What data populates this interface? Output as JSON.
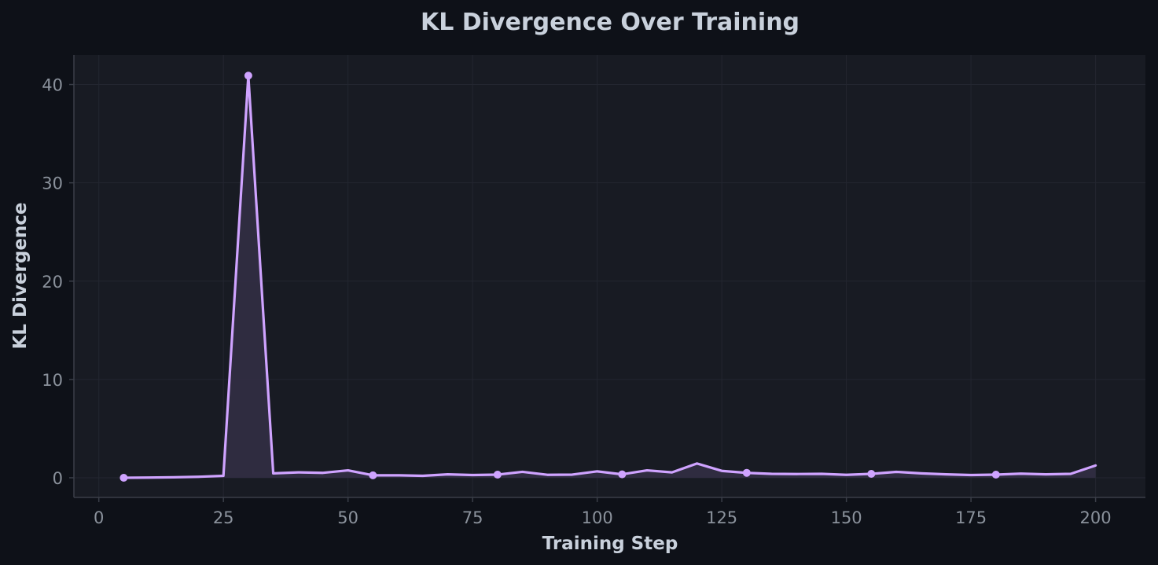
{
  "chart_data": {
    "type": "line",
    "title": "KL Divergence Over Training",
    "xlabel": "Training Step",
    "ylabel": "KL Divergence",
    "xlim": [
      -5,
      210
    ],
    "ylim": [
      -2,
      43
    ],
    "xticks": [
      0,
      25,
      50,
      75,
      100,
      125,
      150,
      175,
      200
    ],
    "yticks": [
      0,
      10,
      20,
      30,
      40
    ],
    "grid": true,
    "legend": "none",
    "fill_under": true,
    "marker_every": 5,
    "x": [
      5,
      10,
      15,
      20,
      25,
      30,
      35,
      40,
      45,
      50,
      55,
      60,
      65,
      70,
      75,
      80,
      85,
      90,
      95,
      100,
      105,
      110,
      115,
      120,
      125,
      130,
      135,
      140,
      145,
      150,
      155,
      160,
      165,
      170,
      175,
      180,
      185,
      190,
      195,
      200
    ],
    "series": [
      {
        "values": [
          0.0,
          0.02,
          0.05,
          0.1,
          0.2,
          40.9,
          0.45,
          0.55,
          0.5,
          0.75,
          0.25,
          0.25,
          0.2,
          0.35,
          0.28,
          0.32,
          0.6,
          0.3,
          0.32,
          0.65,
          0.35,
          0.75,
          0.55,
          1.45,
          0.7,
          0.5,
          0.4,
          0.38,
          0.4,
          0.3,
          0.4,
          0.6,
          0.45,
          0.35,
          0.28,
          0.32,
          0.42,
          0.35,
          0.4,
          1.25
        ],
        "color": "#cfa3ff"
      }
    ],
    "colors": {
      "background": "#0e1118",
      "plot_background": "#181b23",
      "line": "#cfa3ff",
      "fill": "#342f45",
      "axis": "#3a3e48",
      "grid": "#232630"
    }
  }
}
